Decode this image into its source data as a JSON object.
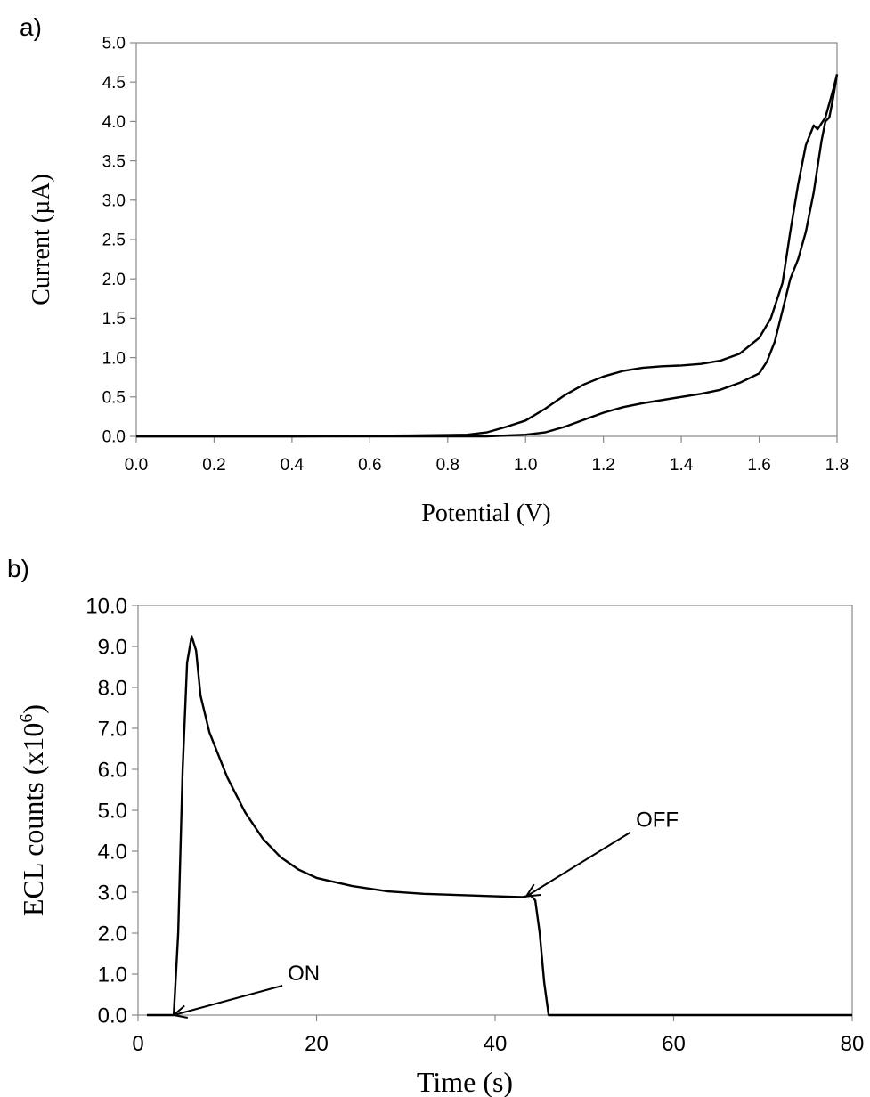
{
  "chart_data": [
    {
      "panel_label": "a)",
      "type": "line",
      "xlabel": "Potential (V)",
      "ylabel": "Current (µA)",
      "xlim": [
        0.0,
        1.8
      ],
      "ylim": [
        0.0,
        5.0
      ],
      "x_ticks": [
        "0.0",
        "0.2",
        "0.4",
        "0.6",
        "0.8",
        "1.0",
        "1.2",
        "1.4",
        "1.6",
        "1.8"
      ],
      "y_ticks": [
        "0.0",
        "0.5",
        "1.0",
        "1.5",
        "2.0",
        "2.5",
        "3.0",
        "3.5",
        "4.0",
        "4.5",
        "5.0"
      ],
      "grid": false,
      "series": [
        {
          "points": [
            [
              0.0,
              0.0
            ],
            [
              0.4,
              0.0
            ],
            [
              0.7,
              0.01
            ],
            [
              0.85,
              0.02
            ],
            [
              0.9,
              0.05
            ],
            [
              0.95,
              0.12
            ],
            [
              1.0,
              0.2
            ],
            [
              1.05,
              0.35
            ],
            [
              1.1,
              0.52
            ],
            [
              1.15,
              0.66
            ],
            [
              1.2,
              0.76
            ],
            [
              1.25,
              0.83
            ],
            [
              1.3,
              0.87
            ],
            [
              1.35,
              0.89
            ],
            [
              1.4,
              0.9
            ],
            [
              1.45,
              0.92
            ],
            [
              1.5,
              0.96
            ],
            [
              1.55,
              1.05
            ],
            [
              1.6,
              1.25
            ],
            [
              1.63,
              1.5
            ],
            [
              1.66,
              1.95
            ],
            [
              1.68,
              2.6
            ],
            [
              1.7,
              3.2
            ],
            [
              1.72,
              3.7
            ],
            [
              1.74,
              3.95
            ],
            [
              1.75,
              3.9
            ],
            [
              1.77,
              4.05
            ],
            [
              1.79,
              4.4
            ],
            [
              1.8,
              4.6
            ]
          ]
        },
        {
          "points": [
            [
              1.8,
              4.6
            ],
            [
              1.79,
              4.3
            ],
            [
              1.78,
              4.05
            ],
            [
              1.77,
              4.0
            ],
            [
              1.76,
              3.75
            ],
            [
              1.74,
              3.1
            ],
            [
              1.72,
              2.6
            ],
            [
              1.7,
              2.25
            ],
            [
              1.68,
              2.0
            ],
            [
              1.66,
              1.6
            ],
            [
              1.64,
              1.2
            ],
            [
              1.62,
              0.95
            ],
            [
              1.6,
              0.8
            ],
            [
              1.55,
              0.68
            ],
            [
              1.5,
              0.59
            ],
            [
              1.45,
              0.54
            ],
            [
              1.4,
              0.5
            ],
            [
              1.35,
              0.46
            ],
            [
              1.3,
              0.42
            ],
            [
              1.25,
              0.37
            ],
            [
              1.2,
              0.3
            ],
            [
              1.15,
              0.21
            ],
            [
              1.1,
              0.12
            ],
            [
              1.05,
              0.05
            ],
            [
              1.0,
              0.02
            ],
            [
              0.95,
              0.01
            ],
            [
              0.9,
              0.0
            ],
            [
              0.0,
              0.0
            ]
          ]
        }
      ]
    },
    {
      "panel_label": "b)",
      "type": "line",
      "xlabel": "Time (s)",
      "ylabel": "ECL counts  (x10",
      "ylabel_superscript": "6",
      "ylabel_suffix": ")",
      "xlim": [
        0,
        80
      ],
      "ylim": [
        0.0,
        10.0
      ],
      "x_ticks": [
        "0",
        "20",
        "40",
        "60",
        "80"
      ],
      "y_ticks": [
        "0.0",
        "1.0",
        "2.0",
        "3.0",
        "4.0",
        "5.0",
        "6.0",
        "7.0",
        "8.0",
        "9.0",
        "10.0"
      ],
      "grid": false,
      "series": [
        {
          "points": [
            [
              1,
              0.0
            ],
            [
              4,
              0.0
            ],
            [
              4.5,
              2.0
            ],
            [
              5,
              6.0
            ],
            [
              5.5,
              8.6
            ],
            [
              6,
              9.25
            ],
            [
              6.5,
              8.9
            ],
            [
              7,
              7.8
            ],
            [
              8,
              6.9
            ],
            [
              10,
              5.8
            ],
            [
              12,
              4.95
            ],
            [
              14,
              4.3
            ],
            [
              16,
              3.85
            ],
            [
              18,
              3.55
            ],
            [
              20,
              3.35
            ],
            [
              24,
              3.15
            ],
            [
              28,
              3.02
            ],
            [
              32,
              2.96
            ],
            [
              36,
              2.93
            ],
            [
              40,
              2.9
            ],
            [
              43,
              2.88
            ],
            [
              44,
              2.92
            ],
            [
              44.5,
              2.8
            ],
            [
              45,
              2.0
            ],
            [
              45.5,
              0.8
            ],
            [
              46,
              0.0
            ],
            [
              80,
              0.0
            ]
          ]
        }
      ],
      "annotations": [
        {
          "text": "ON",
          "at": [
            4,
            0.0
          ]
        },
        {
          "text": "OFF",
          "at": [
            43.5,
            2.9
          ]
        }
      ]
    }
  ]
}
